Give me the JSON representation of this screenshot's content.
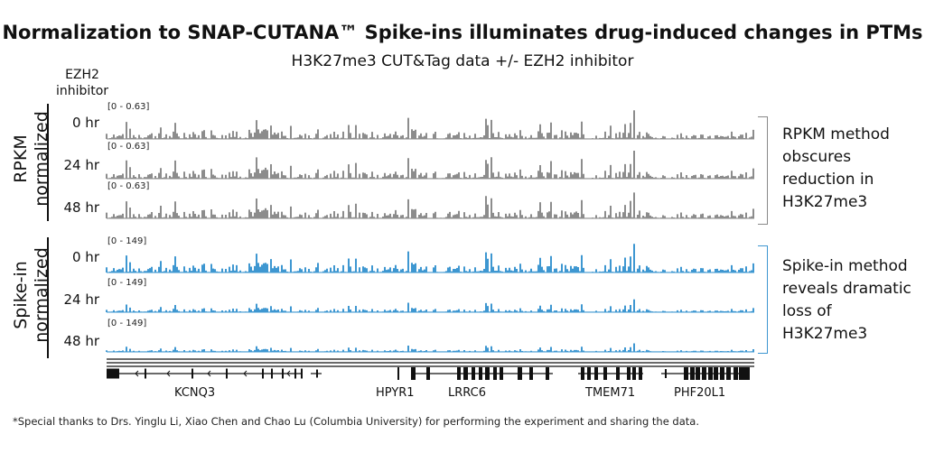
{
  "title": "Normalization to SNAP-CUTANA™ Spike-ins illuminates drug-induced changes in PTMs",
  "subtitle": "H3K27me3 CUT&Tag data +/- EZH2 inhibitor",
  "ezh2_label_line1": "EZH2",
  "ezh2_label_line2": "inhibitor",
  "groups": [
    {
      "label_line1": "RPKM",
      "label_line2": "normalized",
      "color": "#8c8c8c",
      "note_lines": [
        "RPKM method",
        "obscures",
        "reduction in",
        "H3K27me3"
      ],
      "tracks": [
        {
          "time": "0 hr",
          "range": "[0 - 0.63]",
          "level": 1.0
        },
        {
          "time": "24 hr",
          "range": "[0 - 0.63]",
          "level": 1.0
        },
        {
          "time": "48 hr",
          "range": "[0 - 0.63]",
          "level": 1.0
        }
      ]
    },
    {
      "label_line1": "Spike-in",
      "label_line2": "normalized",
      "color": "#3e97d1",
      "note_lines": [
        "Spike-in method",
        "reveals dramatic",
        "loss of",
        "H3K27me3"
      ],
      "tracks": [
        {
          "time": "0 hr",
          "range": "[0 - 149]",
          "level": 1.0
        },
        {
          "time": "24 hr",
          "range": "[0 - 149]",
          "level": 0.45
        },
        {
          "time": "48 hr",
          "range": "[0 - 149]",
          "level": 0.3
        }
      ]
    }
  ],
  "genes": [
    "KCNQ3",
    "HPYR1",
    "LRRC6",
    "TMEM71",
    "PHF20L1"
  ],
  "footnote": "*Special thanks to Drs. Yinglu Li, Xiao Chen and Chao Lu (Columbia University) for performing the experiment and sharing the data."
}
